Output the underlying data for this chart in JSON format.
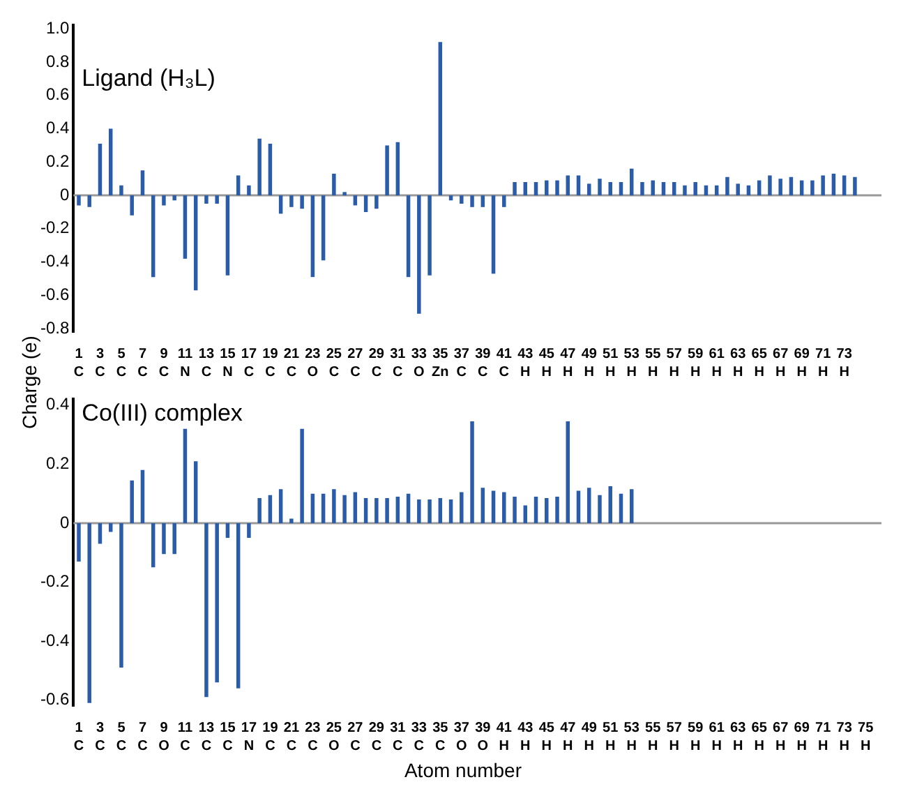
{
  "chart_data": [
    {
      "type": "bar",
      "title": "Ligand (H₃L)",
      "ylabel": "Charge (e)",
      "color": "#2a5caa",
      "grid": false,
      "legend": false,
      "categories": [
        "1\nC",
        null,
        "3\nC",
        null,
        "5\nC",
        null,
        "7\nC",
        null,
        "9\nC",
        null,
        "11\nN",
        null,
        "13\nC",
        null,
        "15\nN",
        null,
        "17\nC",
        null,
        "19\nC",
        null,
        "21\nC",
        null,
        "23\nO",
        null,
        "25\nC",
        null,
        "27\nC",
        null,
        "29\nC",
        null,
        "31\nC",
        null,
        "33\nO",
        null,
        "35\nZn",
        null,
        "37\nC",
        null,
        "39\nC",
        null,
        "41\nC",
        null,
        "43\nH",
        null,
        "45\nH",
        null,
        "47\nH",
        null,
        "49\nH",
        null,
        "51\nH",
        null,
        "53\nH",
        null,
        "55\nH",
        null,
        "57\nH",
        null,
        "59\nH",
        null,
        "61\nH",
        null,
        "63\nH",
        null,
        "65\nH",
        null,
        "67\nH",
        null,
        "69\nH",
        null,
        "71\nH",
        null,
        "73\nH",
        null,
        null,
        null
      ],
      "values": [
        -0.06,
        -0.07,
        0.31,
        0.4,
        0.06,
        -0.12,
        0.15,
        -0.49,
        -0.06,
        -0.03,
        -0.38,
        -0.57,
        -0.05,
        -0.05,
        -0.48,
        0.12,
        0.06,
        0.34,
        0.31,
        -0.11,
        -0.07,
        -0.08,
        -0.49,
        -0.39,
        0.13,
        0.02,
        -0.06,
        -0.1,
        -0.08,
        0.3,
        0.32,
        -0.49,
        -0.71,
        -0.48,
        0.92,
        -0.03,
        -0.05,
        -0.07,
        -0.07,
        -0.47,
        -0.07,
        0.08,
        0.08,
        0.08,
        0.09,
        0.09,
        0.12,
        0.12,
        0.07,
        0.1,
        0.08,
        0.08,
        0.16,
        0.08,
        0.09,
        0.08,
        0.08,
        0.06,
        0.08,
        0.06,
        0.06,
        0.11,
        0.07,
        0.06,
        0.09,
        0.12,
        0.1,
        0.11,
        0.09,
        0.09,
        0.12,
        0.13,
        0.12,
        0.11,
        null,
        null
      ],
      "ref_lines": [
        {
          "axis": "y",
          "value": 0,
          "color": "#999999"
        }
      ],
      "ylim": [
        -0.82,
        1.02
      ],
      "yticks": [
        {
          "value": 1.0,
          "label": "1.0"
        },
        0.8,
        0.6,
        0.4,
        0.2,
        0,
        -0.2,
        -0.4,
        -0.6,
        -0.8
      ]
    },
    {
      "type": "bar",
      "title": "Co(III) complex",
      "xlabel": "Atom number",
      "color": "#2a5caa",
      "grid": false,
      "legend": false,
      "categories": [
        "1\nC",
        null,
        "3\nC",
        null,
        "5\nC",
        null,
        "7\nC",
        null,
        "9\nO",
        null,
        "11\nC",
        null,
        "13\nC",
        null,
        "15\nC",
        null,
        "17\nN",
        null,
        "19\nC",
        null,
        "21\nC",
        null,
        "23\nC",
        null,
        "25\nO",
        null,
        "27\nC",
        null,
        "29\nC",
        null,
        "31\nC",
        null,
        "33\nC",
        null,
        "35\nC",
        null,
        "37\nO",
        null,
        "39\nO",
        null,
        "41\nH",
        null,
        "43\nH",
        null,
        "45\nH",
        null,
        "47\nH",
        null,
        "49\nH",
        null,
        "51\nH",
        null,
        "53\nH",
        null,
        "55\nH",
        null,
        "57\nH",
        null,
        "59\nH",
        null,
        "61\nH",
        null,
        "63\nH",
        null,
        "65\nH",
        null,
        "67\nH",
        null,
        "69\nH",
        null,
        "71\nH",
        null,
        "73\nH",
        null,
        "75\nH",
        null
      ],
      "values": [
        -0.13,
        -0.61,
        -0.07,
        -0.03,
        -0.49,
        0.145,
        0.18,
        -0.15,
        -0.105,
        -0.105,
        0.32,
        0.21,
        -0.59,
        -0.54,
        -0.05,
        -0.56,
        -0.05,
        0.085,
        0.095,
        0.115,
        0.015,
        0.32,
        0.1,
        0.1,
        0.115,
        0.095,
        0.105,
        0.085,
        0.085,
        0.085,
        0.09,
        0.1,
        0.08,
        0.08,
        0.085,
        0.08,
        0.105,
        0.345,
        0.12,
        0.11,
        0.105,
        0.09,
        0.06,
        0.09,
        0.085,
        0.09,
        0.345,
        0.11,
        0.12,
        0.095,
        0.125,
        0.1,
        0.115,
        null,
        null,
        null,
        null,
        null,
        null,
        null,
        null,
        null,
        null,
        null,
        null,
        null,
        null,
        null,
        null,
        null,
        null,
        null,
        null,
        null,
        null,
        null
      ],
      "ref_lines": [
        {
          "axis": "y",
          "value": 0,
          "color": "#999999"
        }
      ],
      "ylim": [
        -0.62,
        0.42
      ],
      "yticks": [
        0.4,
        0.2,
        0,
        -0.2,
        -0.4,
        -0.6
      ]
    }
  ]
}
